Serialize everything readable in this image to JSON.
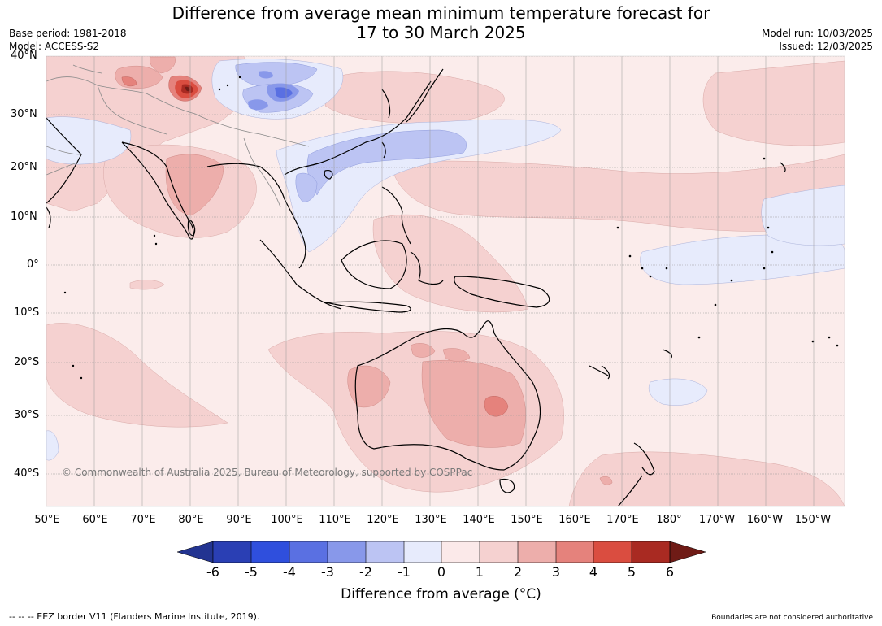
{
  "title": {
    "line1": "Difference from average mean minimum temperature forecast for",
    "line2": "17 to 30 March 2025"
  },
  "meta": {
    "base_period": "Base period: 1981-2018",
    "model": "Model: ACCESS-S2",
    "model_run": "Model run: 10/03/2025",
    "issued": "Issued: 12/03/2025"
  },
  "map": {
    "lat_labels": [
      "40°N",
      "30°N",
      "20°N",
      "10°N",
      "0°",
      "10°S",
      "20°S",
      "30°S",
      "40°S"
    ],
    "lon_labels": [
      "50°E",
      "60°E",
      "70°E",
      "80°E",
      "90°E",
      "100°E",
      "110°E",
      "120°E",
      "130°E",
      "140°E",
      "150°E",
      "160°E",
      "170°E",
      "180°",
      "170°W",
      "160°W",
      "150°W"
    ],
    "copyright": "© Commonwealth of Australia 2025, Bureau of Meteorology, supported by COSPPac",
    "colors": {
      "ocean_base": "#fbeceb",
      "land_outline": "#000000",
      "grid": "#999999"
    }
  },
  "legend": {
    "title": "Difference from average (°C)",
    "ticks": [
      "-6",
      "-5",
      "-4",
      "-3",
      "-2",
      "-1",
      "0",
      "1",
      "2",
      "3",
      "4",
      "5",
      "6"
    ],
    "colors": [
      "#233491",
      "#2a3fb4",
      "#2f4fdd",
      "#5a70e2",
      "#8898ea",
      "#bcc4f3",
      "#e7ebfc",
      "#fbe9e9",
      "#f5d1d0",
      "#edaeab",
      "#e5827c",
      "#da4d40",
      "#a92a22",
      "#6f1b16"
    ]
  },
  "footer": {
    "eez_note": "-- -- -- EEZ border V11 (Flanders Marine Institute, 2019).",
    "boundaries_note": "Boundaries are not considered authoritative"
  }
}
